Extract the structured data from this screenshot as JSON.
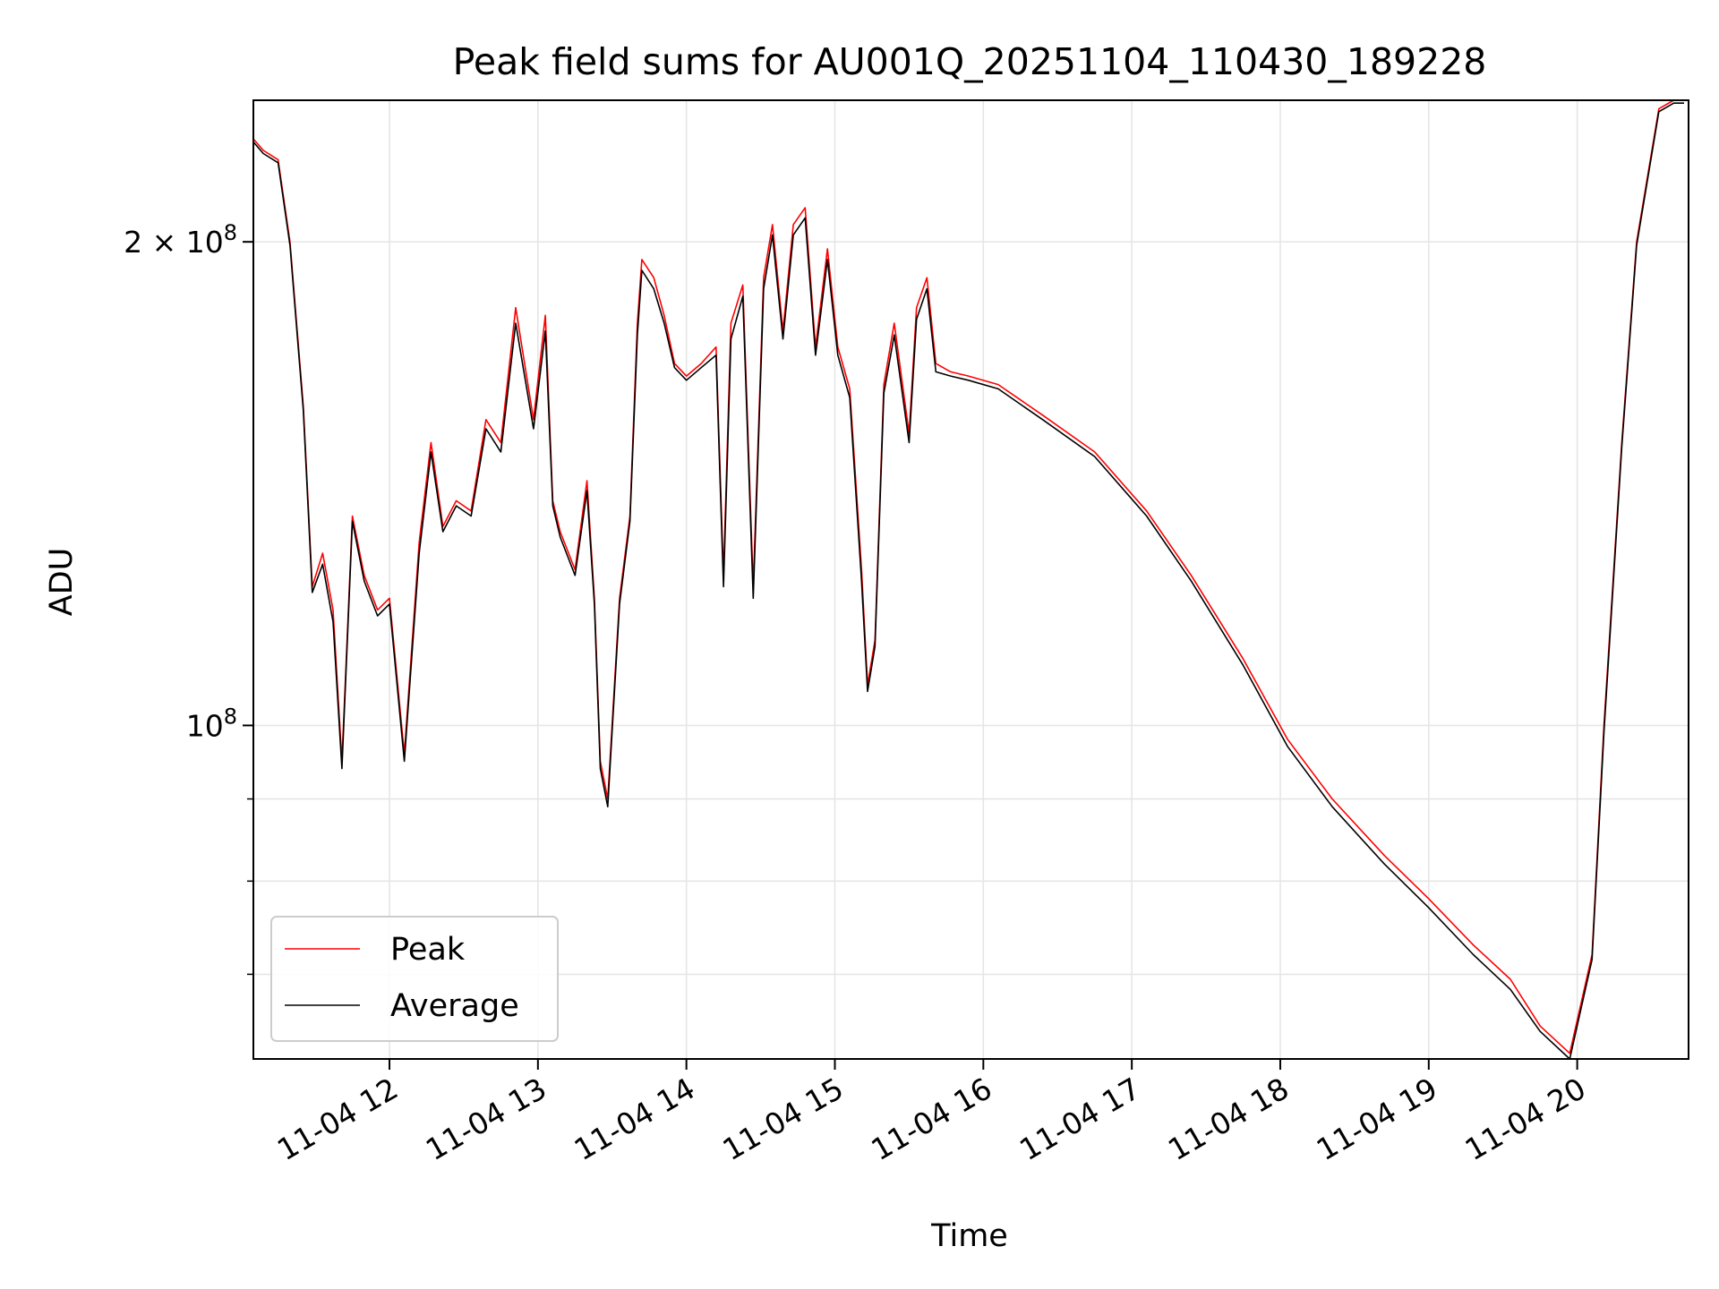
{
  "chart_data": {
    "type": "line",
    "title": "Peak field sums for AU001Q_20251104_110430_189228",
    "xlabel": "Time",
    "ylabel": "ADU",
    "y_scale": "log",
    "ylim": [
      62000000,
      245000000
    ],
    "xlim": [
      "11-04 11:05",
      "11-04 20:45"
    ],
    "grid": true,
    "legend_position": "lower-left",
    "x_ticks": [
      "11-04 12",
      "11-04 13",
      "11-04 14",
      "11-04 15",
      "11-04 16",
      "11-04 17",
      "11-04 18",
      "11-04 19",
      "11-04 20"
    ],
    "x_tick_hours": [
      12,
      13,
      14,
      15,
      16,
      17,
      18,
      19,
      20
    ],
    "y_tick_labels": [
      {
        "value": 200000000,
        "label": "2 × 10^8"
      },
      {
        "value": 100000000,
        "label": "10^8"
      }
    ],
    "y_minor_ticks": [
      70000000,
      80000000,
      90000000
    ],
    "series": [
      {
        "name": "Peak",
        "color": "#ff0000",
        "time_hours": [
          11.08,
          11.15,
          11.25,
          11.33,
          11.42,
          11.48,
          11.55,
          11.62,
          11.68,
          11.75,
          11.83,
          11.92,
          12.0,
          12.1,
          12.2,
          12.28,
          12.36,
          12.45,
          12.55,
          12.65,
          12.75,
          12.85,
          12.97,
          13.05,
          13.1,
          13.15,
          13.25,
          13.33,
          13.38,
          13.42,
          13.47,
          13.55,
          13.62,
          13.67,
          13.7,
          13.78,
          13.85,
          13.92,
          14.0,
          14.1,
          14.2,
          14.25,
          14.3,
          14.38,
          14.45,
          14.52,
          14.58,
          14.65,
          14.72,
          14.8,
          14.87,
          14.95,
          15.02,
          15.1,
          15.18,
          15.22,
          15.27,
          15.33,
          15.4,
          15.5,
          15.55,
          15.62,
          15.68,
          15.78,
          15.9,
          16.1,
          16.4,
          16.75,
          17.1,
          17.4,
          17.75,
          18.05,
          18.35,
          18.7,
          19.0,
          19.3,
          19.55,
          19.75,
          19.95,
          20.1,
          20.18,
          20.3,
          20.4,
          20.55,
          20.65,
          20.72
        ],
        "values": [
          232000000,
          228000000,
          225000000,
          200000000,
          158000000,
          122000000,
          128000000,
          118000000,
          95000000,
          135000000,
          124000000,
          118000000,
          120000000,
          96000000,
          130000000,
          150000000,
          133000000,
          138000000,
          136000000,
          155000000,
          150000000,
          182000000,
          155000000,
          180000000,
          138000000,
          132000000,
          125000000,
          142000000,
          120000000,
          95000000,
          90000000,
          120000000,
          135000000,
          178000000,
          195000000,
          190000000,
          180000000,
          168000000,
          165000000,
          168000000,
          172000000,
          124000000,
          178000000,
          188000000,
          122000000,
          190000000,
          205000000,
          176000000,
          205000000,
          210000000,
          172000000,
          198000000,
          172000000,
          162000000,
          125000000,
          106000000,
          113000000,
          163000000,
          178000000,
          152000000,
          182000000,
          190000000,
          168000000,
          166000000,
          165000000,
          163000000,
          156000000,
          148000000,
          136000000,
          124000000,
          110000000,
          98000000,
          90000000,
          83000000,
          78000000,
          73000000,
          69500000,
          65000000,
          62500000,
          72000000,
          100000000,
          150000000,
          200000000,
          242000000,
          245000000,
          245000000
        ]
      },
      {
        "name": "Average",
        "color": "#000000",
        "time_hours": [
          11.08,
          11.15,
          11.25,
          11.33,
          11.42,
          11.48,
          11.55,
          11.62,
          11.68,
          11.75,
          11.83,
          11.92,
          12.0,
          12.1,
          12.2,
          12.28,
          12.36,
          12.45,
          12.55,
          12.65,
          12.75,
          12.85,
          12.97,
          13.05,
          13.1,
          13.15,
          13.25,
          13.33,
          13.38,
          13.42,
          13.47,
          13.55,
          13.62,
          13.67,
          13.7,
          13.78,
          13.85,
          13.92,
          14.0,
          14.1,
          14.2,
          14.25,
          14.3,
          14.38,
          14.45,
          14.52,
          14.58,
          14.65,
          14.72,
          14.8,
          14.87,
          14.95,
          15.02,
          15.1,
          15.18,
          15.22,
          15.27,
          15.33,
          15.4,
          15.5,
          15.55,
          15.62,
          15.68,
          15.78,
          15.9,
          16.1,
          16.4,
          16.75,
          17.1,
          17.4,
          17.75,
          18.05,
          18.35,
          18.7,
          19.0,
          19.3,
          19.55,
          19.75,
          19.95,
          20.1,
          20.18,
          20.3,
          20.4,
          20.55,
          20.65,
          20.72
        ],
        "values": [
          231000000,
          227000000,
          224000000,
          199000000,
          157000000,
          121000000,
          126000000,
          116000000,
          94000000,
          134000000,
          123000000,
          117000000,
          119000000,
          95000000,
          128000000,
          148000000,
          132000000,
          137000000,
          135000000,
          153000000,
          148000000,
          178000000,
          153000000,
          176000000,
          137000000,
          131000000,
          124000000,
          140000000,
          119000000,
          94000000,
          89000000,
          119000000,
          134000000,
          175000000,
          192000000,
          187000000,
          178000000,
          167000000,
          164000000,
          167000000,
          170000000,
          122000000,
          174000000,
          185000000,
          120000000,
          187000000,
          202000000,
          174000000,
          202000000,
          207000000,
          170000000,
          195000000,
          170000000,
          160000000,
          123000000,
          105000000,
          112000000,
          161000000,
          175000000,
          150000000,
          179000000,
          187000000,
          166000000,
          165000000,
          164000000,
          162000000,
          155000000,
          147000000,
          135000000,
          123000000,
          109000000,
          97000000,
          89000000,
          82000000,
          77000000,
          72000000,
          68500000,
          64500000,
          62000000,
          71500000,
          99000000,
          149000000,
          199000000,
          241000000,
          244000000,
          244000000
        ]
      }
    ]
  }
}
